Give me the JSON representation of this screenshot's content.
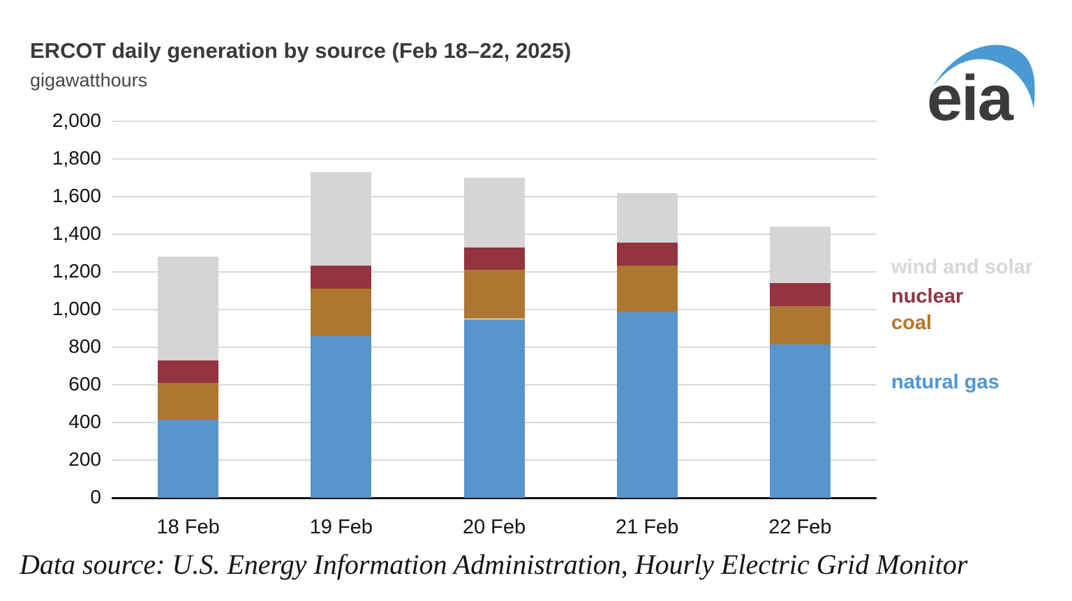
{
  "header": {
    "title": "ERCOT daily generation by source (Feb 18–22, 2025)",
    "subtitle": "gigawatthours"
  },
  "logo": {
    "text": "eia",
    "text_color": "#3b3b3b",
    "swoosh_color": "#4a99d3"
  },
  "chart_data": {
    "type": "bar",
    "stacked": true,
    "title": "ERCOT daily generation by source (Feb 18–22, 2025)",
    "ylabel": "gigawatthours",
    "xlabel": "",
    "categories": [
      "18 Feb",
      "19 Feb",
      "20 Feb",
      "21 Feb",
      "22 Feb"
    ],
    "series": [
      {
        "name": "natural gas",
        "color": "#5995cd",
        "values": [
          415,
          860,
          950,
          990,
          815
        ]
      },
      {
        "name": "coal",
        "color": "#ad7731",
        "values": [
          195,
          250,
          260,
          245,
          205
        ]
      },
      {
        "name": "nuclear",
        "color": "#93343f",
        "values": [
          120,
          125,
          120,
          120,
          120
        ]
      },
      {
        "name": "wind and solar",
        "color": "#d6d4d5",
        "values": [
          550,
          495,
          370,
          265,
          300
        ]
      }
    ],
    "totals": [
      1280,
      1730,
      1700,
      1620,
      1440
    ],
    "ylim": [
      0,
      2000
    ],
    "ytick_step": 200,
    "grid": true,
    "gridline_color": "#d9d9d9",
    "axis_color": "#111111",
    "legend_position": "right"
  },
  "legend": {
    "items": [
      {
        "label": "wind and solar",
        "color": "#d8d6d7"
      },
      {
        "label": "nuclear",
        "color": "#8f3543"
      },
      {
        "label": "coal",
        "color": "#b5772a"
      },
      {
        "label": "natural gas",
        "color": "#4e96d3"
      }
    ]
  },
  "footer": {
    "text": "Data source: U.S. Energy Information Administration, Hourly Electric Grid Monitor"
  }
}
